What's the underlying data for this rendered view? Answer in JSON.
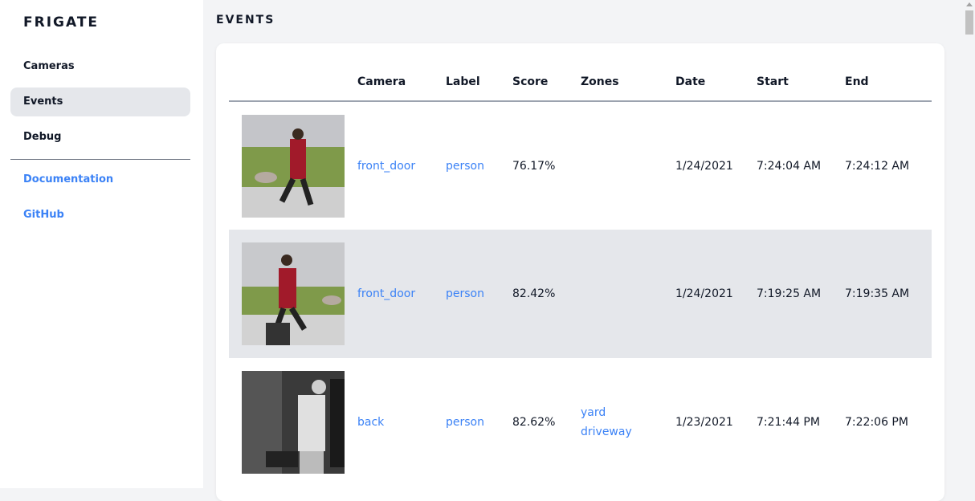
{
  "sidebar": {
    "brand": "FRIGATE",
    "items": [
      {
        "label": "Cameras"
      },
      {
        "label": "Events",
        "active": true
      },
      {
        "label": "Debug"
      }
    ],
    "links": [
      {
        "label": "Documentation"
      },
      {
        "label": "GitHub"
      }
    ]
  },
  "page": {
    "title": "EVENTS"
  },
  "table": {
    "columns": [
      "",
      "Camera",
      "Label",
      "Score",
      "Zones",
      "Date",
      "Start",
      "End"
    ],
    "rows": [
      {
        "thumbnail": "person-walking-dog-daylight",
        "camera": "front_door",
        "label": "person",
        "score": "76.17%",
        "zones": [
          "",
          ""
        ],
        "date": "1/24/2021",
        "start": "7:24:04 AM",
        "end": "7:24:12 AM"
      },
      {
        "thumbnail": "person-walking-dog-daylight",
        "camera": "front_door",
        "label": "person",
        "score": "82.42%",
        "zones": [
          "",
          ""
        ],
        "date": "1/24/2021",
        "start": "7:19:25 AM",
        "end": "7:19:35 AM"
      },
      {
        "thumbnail": "person-night-grayscale",
        "camera": "back",
        "label": "person",
        "score": "82.62%",
        "zones": [
          "yard",
          "driveway"
        ],
        "date": "1/23/2021",
        "start": "7:21:44 PM",
        "end": "7:22:06 PM"
      }
    ]
  },
  "colors": {
    "link": "#3b82f6",
    "active_bg": "#e5e7eb"
  }
}
